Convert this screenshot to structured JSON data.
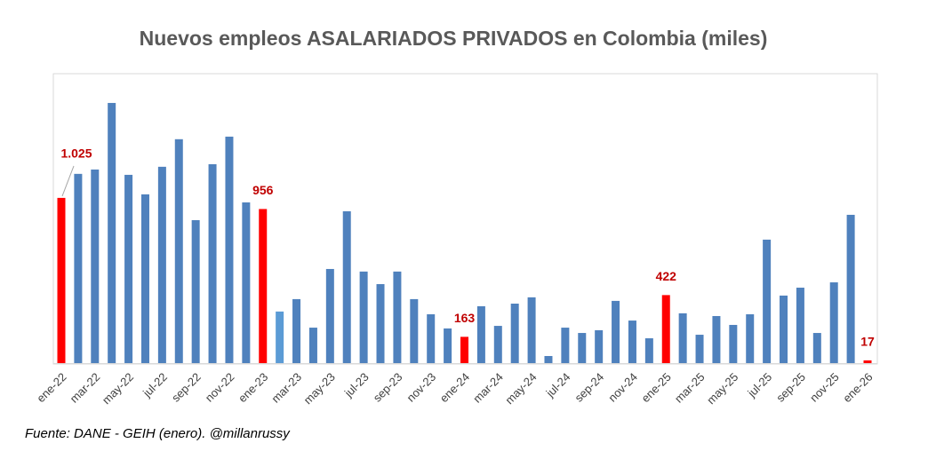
{
  "chart_data": {
    "type": "bar",
    "title": "Nuevos empleos ASALARIADOS PRIVADOS en Colombia (miles)",
    "source": "Fuente: DANE - GEIH (enero). @millanrussy",
    "categories": [
      "ene-22",
      null,
      "mar-22",
      null,
      "may-22",
      null,
      "jul-22",
      null,
      "sep-22",
      null,
      "nov-22",
      null,
      "ene-23",
      null,
      "mar-23",
      null,
      "may-23",
      null,
      "jul-23",
      null,
      "sep-23",
      null,
      "nov-23",
      null,
      "ene-24",
      null,
      "mar-24",
      null,
      "may-24",
      null,
      "jul-24",
      null,
      "sep-24",
      null,
      "nov-24",
      null,
      "ene-25",
      null,
      "mar-25",
      null,
      "may-25",
      null,
      "jul-25",
      null,
      "sep-25",
      null,
      "nov-25",
      null,
      "ene-26"
    ],
    "values": [
      1025,
      1174,
      1201,
      1614,
      1168,
      1047,
      1218,
      1389,
      887,
      1234,
      1405,
      997,
      956,
      320,
      397,
      220,
      584,
      942,
      568,
      490,
      568,
      397,
      303,
      215,
      163,
      353,
      231,
      369,
      408,
      44,
      220,
      187,
      204,
      386,
      264,
      154,
      422,
      309,
      176,
      292,
      237,
      303,
      766,
      419,
      468,
      187,
      501,
      920,
      17
    ],
    "value_labels": [
      "1.025",
      null,
      null,
      null,
      null,
      null,
      null,
      null,
      null,
      null,
      null,
      null,
      "956",
      null,
      null,
      null,
      null,
      null,
      null,
      null,
      null,
      null,
      null,
      null,
      "163",
      null,
      null,
      null,
      null,
      null,
      null,
      null,
      null,
      null,
      null,
      null,
      "422",
      null,
      null,
      null,
      null,
      null,
      null,
      null,
      null,
      null,
      null,
      null,
      "17"
    ],
    "colors": [
      "#ff0000",
      "#4f81bd",
      "#4f81bd",
      "#4f81bd",
      "#4f81bd",
      "#4f81bd",
      "#4f81bd",
      "#4f81bd",
      "#4f81bd",
      "#4f81bd",
      "#4f81bd",
      "#4f81bd",
      "#ff0000",
      "#5b9bd5",
      "#4f81bd",
      "#4f81bd",
      "#4f81bd",
      "#4f81bd",
      "#4f81bd",
      "#4f81bd",
      "#4f81bd",
      "#4f81bd",
      "#4f81bd",
      "#4f81bd",
      "#ff0000",
      "#4f81bd",
      "#4f81bd",
      "#4f81bd",
      "#4f81bd",
      "#4f81bd",
      "#4f81bd",
      "#4f81bd",
      "#4f81bd",
      "#4f81bd",
      "#4f81bd",
      "#4f81bd",
      "#ff0000",
      "#4f81bd",
      "#4f81bd",
      "#4f81bd",
      "#4f81bd",
      "#4f81bd",
      "#4f81bd",
      "#4f81bd",
      "#4f81bd",
      "#4f81bd",
      "#4f81bd",
      "#4f81bd",
      "#ff0000"
    ],
    "label_color": "#c00000",
    "ylim": [
      0,
      1790
    ]
  }
}
